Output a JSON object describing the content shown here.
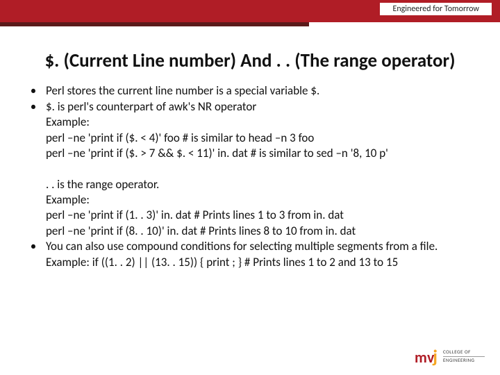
{
  "header": {
    "tagline": "Engineered for Tomorrow",
    "bar_color": "#b01d26",
    "dark_bar_color": "#5b1a1a"
  },
  "title": "$. (Current Line number) And . . (The range operator)",
  "bullets": {
    "b1": "Perl stores the current line number is a special variable $.",
    "b2": "$. is perl's counterpart of awk's NR operator",
    "b2_l1": "Example:",
    "b2_l2": "perl –ne 'print if ($. < 4)' foo                              # is similar to head –n 3 foo",
    "b2_l3": "perl –ne 'print if ($. > 7 && $. < 11)' in. dat    # is similar to sed –n '8, 10 p'",
    "mid_l1": ". . is the range operator.",
    "mid_l2": "Example:",
    "mid_l3": "perl –ne 'print if (1. . 3)' in. dat    # Prints lines 1 to 3 from in. dat",
    "mid_l4": "perl –ne 'print if (8. . 10)' in. dat   # Prints lines 8 to 10 from in. dat",
    "b3": "You can also use compound conditions for selecting multiple segments from a file.",
    "b3_l1": "Example: if ((1. . 2) || (13. . 15)) { print ; }   # Prints lines 1 to 2 and 13 to 15"
  },
  "logo": {
    "m": "m",
    "v": "v",
    "j": "j",
    "line1": "COLLEGE OF",
    "line2": "ENGINEERING"
  }
}
